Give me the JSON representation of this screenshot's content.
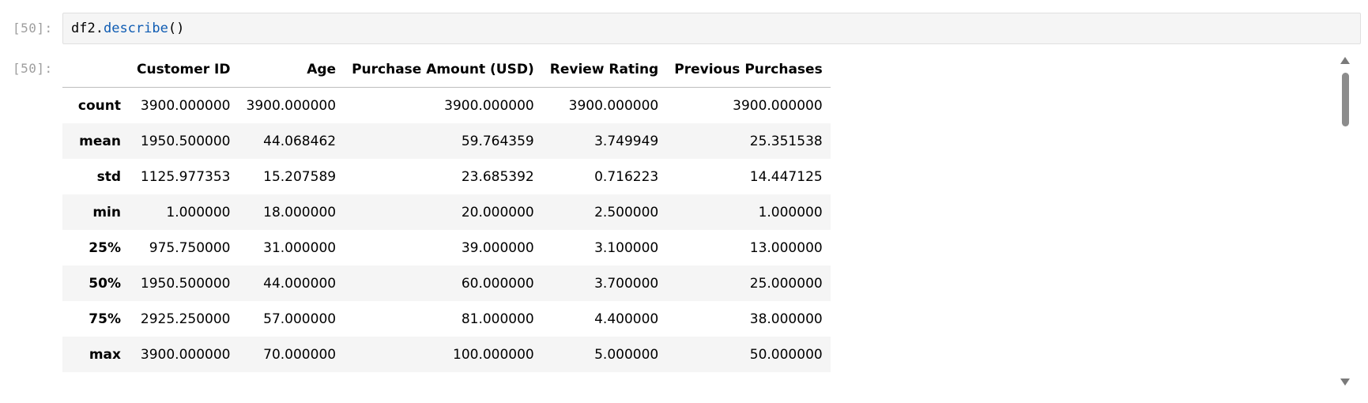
{
  "input_cell": {
    "prompt": "[50]:",
    "code": {
      "var": "df2",
      "dot": ".",
      "fn": "describe",
      "parens": "()"
    }
  },
  "output_cell": {
    "prompt": "[50]:",
    "table": {
      "columns": [
        "",
        "Customer ID",
        "Age",
        "Purchase Amount (USD)",
        "Review Rating",
        "Previous Purchases"
      ],
      "rows": [
        {
          "index": "count",
          "values": [
            "3900.000000",
            "3900.000000",
            "3900.000000",
            "3900.000000",
            "3900.000000"
          ]
        },
        {
          "index": "mean",
          "values": [
            "1950.500000",
            "44.068462",
            "59.764359",
            "3.749949",
            "25.351538"
          ]
        },
        {
          "index": "std",
          "values": [
            "1125.977353",
            "15.207589",
            "23.685392",
            "0.716223",
            "14.447125"
          ]
        },
        {
          "index": "min",
          "values": [
            "1.000000",
            "18.000000",
            "20.000000",
            "2.500000",
            "1.000000"
          ]
        },
        {
          "index": "25%",
          "values": [
            "975.750000",
            "31.000000",
            "39.000000",
            "3.100000",
            "13.000000"
          ]
        },
        {
          "index": "50%",
          "values": [
            "1950.500000",
            "44.000000",
            "60.000000",
            "3.700000",
            "25.000000"
          ]
        },
        {
          "index": "75%",
          "values": [
            "2925.250000",
            "57.000000",
            "81.000000",
            "4.400000",
            "38.000000"
          ]
        },
        {
          "index": "max",
          "values": [
            "3900.000000",
            "70.000000",
            "100.000000",
            "5.000000",
            "50.000000"
          ]
        }
      ]
    }
  },
  "colors": {
    "function_token": "#0f5cb3",
    "prompt": "#9e9e9e",
    "cell_background": "#f5f5f5",
    "striped_row": "#f5f5f5"
  },
  "icons": {
    "scroll_up": "triangle-up-icon",
    "scroll_down": "triangle-down-icon"
  }
}
